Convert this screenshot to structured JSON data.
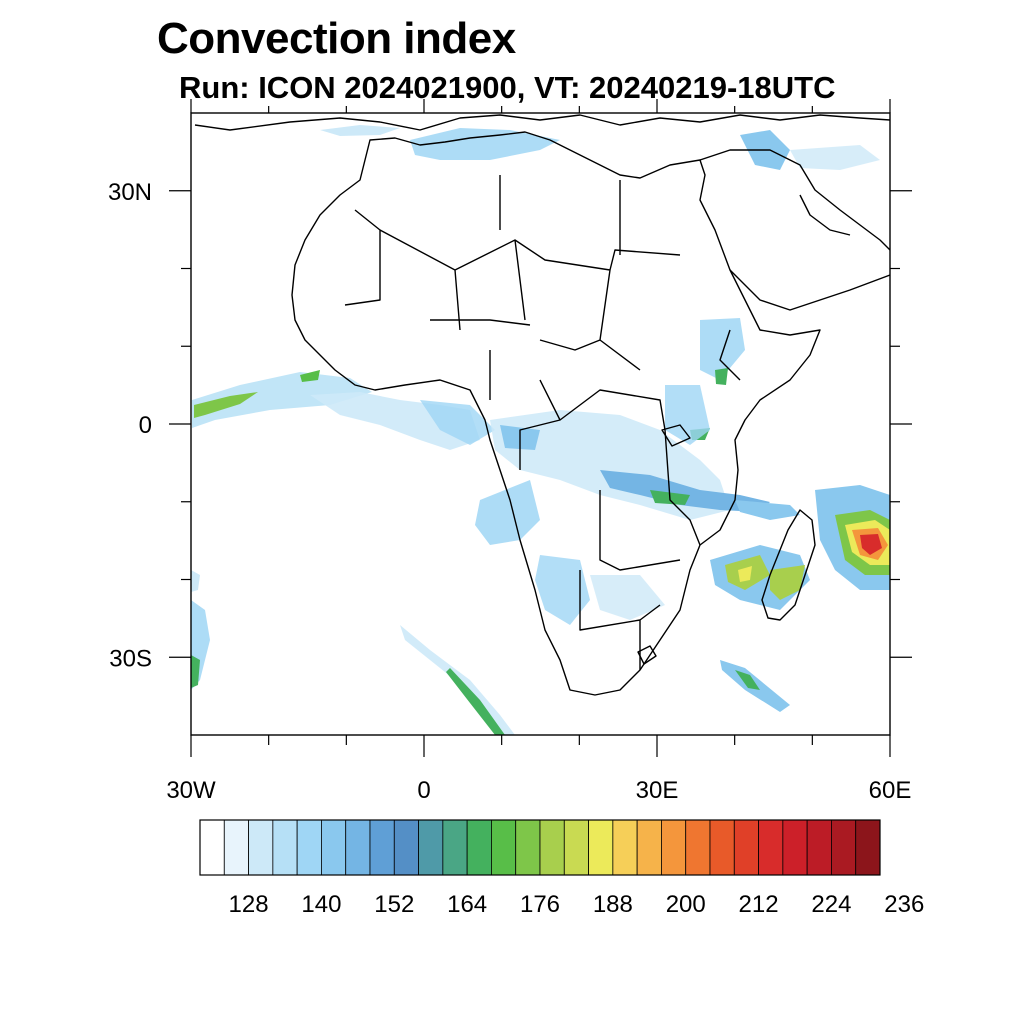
{
  "title": "Convection index",
  "subtitle": "Run: ICON 2024021900,  VT: 20240219-18UTC",
  "map": {
    "lon_range": [
      -30,
      60
    ],
    "lat_range": [
      -40,
      40
    ],
    "x_ticks": [
      {
        "lon": -30,
        "label": "30W"
      },
      {
        "lon": 0,
        "label": "0"
      },
      {
        "lon": 30,
        "label": "30E"
      },
      {
        "lon": 60,
        "label": "60E"
      }
    ],
    "y_ticks": [
      {
        "lat": 30,
        "label": "30N"
      },
      {
        "lat": 0,
        "label": "0"
      },
      {
        "lat": -30,
        "label": "30S"
      }
    ],
    "minor_lon": [
      -20,
      -10,
      10,
      20,
      40,
      50
    ],
    "minor_lat": [
      20,
      10,
      -10,
      -20
    ]
  },
  "colorbar": {
    "colors": [
      "#ffffff",
      "#e8f4fc",
      "#cde9f8",
      "#b6e0f6",
      "#9fd6f5",
      "#8ac8ee",
      "#74b5e4",
      "#5f9fd6",
      "#548fc6",
      "#4f9aa8",
      "#4aa685",
      "#44b15e",
      "#58be48",
      "#7ec649",
      "#a8cf4d",
      "#c9da52",
      "#ecea5a",
      "#f6cf58",
      "#f6b34a",
      "#f4963c",
      "#ef7630",
      "#e85a29",
      "#e04028",
      "#d82c2b",
      "#cc2029",
      "#bc1c26",
      "#aa1a22",
      "#8c151b"
    ],
    "labels": [
      "128",
      "140",
      "152",
      "164",
      "176",
      "188",
      "200",
      "212",
      "224",
      "236"
    ],
    "label_boundaries": [
      2,
      5,
      8,
      11,
      14,
      17,
      20,
      23,
      26,
      29
    ]
  }
}
